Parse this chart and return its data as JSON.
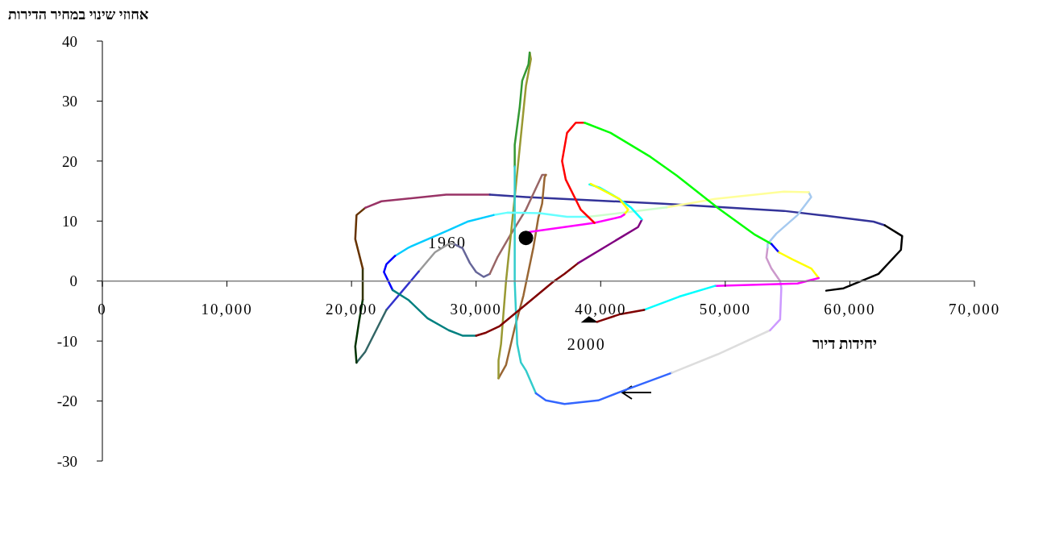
{
  "chart_data": {
    "type": "line",
    "ylabel": "אחוזי שינוי במחיר הדירות",
    "xlabel": "יחידות דיור",
    "xlim": [
      0,
      70000
    ],
    "xticks": [
      {
        "value": 0,
        "label": "0"
      },
      {
        "value": 10000,
        "label": "10,000"
      },
      {
        "value": 20000,
        "label": "20,000"
      },
      {
        "value": 30000,
        "label": "30,000"
      },
      {
        "value": 40000,
        "label": "40,000"
      },
      {
        "value": 50000,
        "label": "50,000"
      },
      {
        "value": 60000,
        "label": "60,000"
      },
      {
        "value": 70000,
        "label": "70,000"
      }
    ],
    "ylim": [
      -30,
      40
    ],
    "yticks": [
      -30,
      -20,
      -10,
      0,
      10,
      20,
      30,
      40
    ],
    "marker": "none",
    "line_style": "solid",
    "annotations": [
      {
        "text": "1960",
        "x": 28200,
        "y": 6.2
      },
      {
        "text": "2000",
        "x": 39700,
        "y": -6.8
      }
    ],
    "series": [
      {
        "type": "line",
        "color": "#666699",
        "x": [
          31100,
          30600,
          30000,
          29500,
          28900,
          28200
        ],
        "values": [
          1.2,
          0.7,
          1.5,
          3.0,
          5.5,
          6.2
        ]
      },
      {
        "type": "line",
        "color": "#999999",
        "x": [
          28200,
          27800,
          26700,
          25400
        ],
        "values": [
          6.2,
          6.2,
          4.8,
          1.6
        ]
      },
      {
        "type": "line",
        "color": "#3333cc",
        "x": [
          25400,
          22800
        ],
        "values": [
          1.6,
          -4.8
        ]
      },
      {
        "type": "line",
        "color": "#336666",
        "x": [
          22800,
          21100,
          20400
        ],
        "values": [
          -4.8,
          -11.8,
          -13.6
        ]
      },
      {
        "type": "line",
        "color": "#003300",
        "x": [
          20400,
          20300,
          20600,
          20900
        ],
        "values": [
          -13.6,
          -10.9,
          -6.8,
          -3.1
        ]
      },
      {
        "type": "line",
        "color": "#333300",
        "x": [
          20900,
          20900
        ],
        "values": [
          -3.1,
          2.1
        ]
      },
      {
        "type": "line",
        "color": "#663300",
        "x": [
          20900,
          20300,
          20400,
          21100
        ],
        "values": [
          2.1,
          7.0,
          11.0,
          12.2
        ]
      },
      {
        "type": "line",
        "color": "#993366",
        "x": [
          21100,
          22400,
          27600,
          31100
        ],
        "values": [
          12.2,
          13.3,
          14.4,
          14.4
        ]
      },
      {
        "type": "line",
        "color": "#333399",
        "x": [
          31100,
          34000,
          45000,
          54700,
          58000,
          61900,
          62800
        ],
        "values": [
          14.4,
          14.0,
          12.9,
          11.7,
          10.9,
          9.9,
          9.3
        ]
      },
      {
        "type": "line",
        "color": "#000000",
        "x": [
          62800,
          64200,
          64100,
          62300,
          59500,
          58100
        ],
        "values": [
          9.3,
          7.5,
          5.2,
          1.2,
          -1.2,
          -1.6
        ]
      },
      {
        "type": "line",
        "color": "#996666",
        "x": [
          35600,
          35300,
          34000,
          32700,
          31700,
          31100
        ],
        "values": [
          17.7,
          17.7,
          11.9,
          7.5,
          3.9,
          1.2
        ]
      },
      {
        "type": "line",
        "color": "#996633",
        "x": [
          31800,
          32400,
          33100,
          33800,
          34600,
          35000,
          35300,
          35500,
          35600
        ],
        "values": [
          -16.2,
          -14.0,
          -7.8,
          -2.4,
          5.6,
          10.6,
          12.9,
          17.3,
          17.7
        ]
      },
      {
        "type": "line",
        "color": "#999933",
        "x": [
          34300,
          34400,
          34000,
          33200,
          32400,
          32000,
          31800,
          31800
        ],
        "values": [
          38.1,
          37.0,
          32.5,
          16.0,
          -0.1,
          -10.5,
          -13.2,
          -16.2
        ]
      },
      {
        "type": "line",
        "color": "#339933",
        "x": [
          33100,
          33100,
          33500,
          33700,
          34200,
          34300
        ],
        "values": [
          19.1,
          22.7,
          29.0,
          33.4,
          36.1,
          38.1
        ]
      },
      {
        "type": "line",
        "color": "#33cccc",
        "x": [
          34800,
          34000,
          33600,
          33300,
          33100,
          33100
        ],
        "values": [
          -18.7,
          -14.9,
          -13.6,
          -10.5,
          -0.1,
          19.1
        ]
      },
      {
        "type": "line",
        "color": "#3366ff",
        "x": [
          45700,
          41800,
          39800,
          37100,
          35600,
          34800
        ],
        "values": [
          -15.3,
          -18.3,
          -19.9,
          -20.5,
          -19.9,
          -18.7
        ]
      },
      {
        "type": "line",
        "color": "#dddddd",
        "x": [
          53600,
          49400,
          45700
        ],
        "values": [
          -8.2,
          -12.2,
          -15.3
        ]
      },
      {
        "type": "line",
        "color": "#cc99ff",
        "x": [
          54400,
          54500,
          54400,
          53600
        ],
        "values": [
          0,
          -1.1,
          -6.4,
          -8.2
        ]
      },
      {
        "type": "line",
        "color": "#cc99cc",
        "x": [
          53400,
          53300,
          53700,
          54400
        ],
        "values": [
          5.6,
          3.9,
          2.1,
          0
        ]
      },
      {
        "type": "line",
        "color": "#a6caf0",
        "x": [
          56700,
          56900,
          55800,
          54100,
          53400,
          53400
        ],
        "values": [
          14.8,
          14.0,
          11.0,
          7.9,
          6.2,
          5.6
        ]
      },
      {
        "type": "line",
        "color": "#ffff99",
        "x": [
          45300,
          49200,
          54700,
          56700
        ],
        "values": [
          12.3,
          13.7,
          14.9,
          14.8
        ]
      },
      {
        "type": "line",
        "color": "#ccffcc",
        "x": [
          39000,
          45300
        ],
        "values": [
          10.7,
          12.3
        ]
      },
      {
        "type": "line",
        "color": "#66ffff",
        "x": [
          31400,
          32500,
          35100,
          37300,
          39000
        ],
        "values": [
          11.0,
          11.4,
          11.3,
          10.7,
          10.7
        ]
      },
      {
        "type": "line",
        "color": "#00ccff",
        "x": [
          23500,
          24600,
          27600,
          29300,
          31400
        ],
        "values": [
          4.2,
          5.6,
          8.3,
          9.9,
          11.0
        ]
      },
      {
        "type": "line",
        "color": "#0000ff",
        "x": [
          23300,
          22600,
          22800,
          23500
        ],
        "values": [
          -1.5,
          1.5,
          2.8,
          4.2
        ]
      },
      {
        "type": "line",
        "color": "#008080",
        "x": [
          30000,
          28900,
          27800,
          26100,
          24600,
          23300
        ],
        "values": [
          -9.1,
          -9.1,
          -8.2,
          -6.2,
          -3.2,
          -1.5
        ]
      },
      {
        "type": "line",
        "color": "#800000",
        "x": [
          38200,
          37100,
          36200,
          34000,
          31900,
          30800,
          30000
        ],
        "values": [
          3.0,
          1.2,
          -0.1,
          -3.9,
          -7.5,
          -8.6,
          -9.1
        ]
      },
      {
        "type": "line",
        "color": "#800080",
        "x": [
          43300,
          43000,
          41800,
          38200
        ],
        "values": [
          10.2,
          9.0,
          7.5,
          3.0
        ]
      },
      {
        "type": "line",
        "color": "#00ffff",
        "x": [
          39100,
          39900,
          41400,
          42400,
          43300
        ],
        "values": [
          16.1,
          15.6,
          13.8,
          12.3,
          10.3
        ]
      },
      {
        "type": "line",
        "color": "#ffff00",
        "x": [
          41900,
          42200,
          41500,
          39200
        ],
        "values": [
          11.1,
          11.9,
          13.7,
          16.2
        ]
      },
      {
        "type": "line",
        "color": "#ff00ff",
        "x": [
          34300,
          39500,
          41600,
          41900
        ],
        "values": [
          8.2,
          9.7,
          10.7,
          11.1
        ]
      },
      {
        "type": "line",
        "color": "#ff0000",
        "x": [
          39500,
          38400,
          37200,
          36900,
          37300,
          38000,
          38700
        ],
        "values": [
          9.7,
          11.9,
          16.9,
          20.0,
          24.7,
          26.4,
          26.4
        ]
      },
      {
        "type": "line",
        "color": "#00ff00",
        "x": [
          38700,
          40800,
          44000,
          46100,
          49400,
          52400,
          53700
        ],
        "values": [
          26.4,
          24.7,
          20.7,
          17.6,
          12.2,
          7.7,
          6.2
        ]
      },
      {
        "type": "line",
        "color": "#0000ff",
        "x": [
          53700,
          54300
        ],
        "values": [
          6.2,
          4.8
        ]
      },
      {
        "type": "line",
        "color": "#ffff00",
        "x": [
          54300,
          55400,
          56900,
          57500
        ],
        "values": [
          4.8,
          3.6,
          2.1,
          0.5
        ]
      },
      {
        "type": "line",
        "color": "#ff00ff",
        "x": [
          57500,
          55800,
          49200
        ],
        "values": [
          0.5,
          -0.4,
          -0.8
        ]
      },
      {
        "type": "line",
        "color": "#00ffff",
        "x": [
          49200,
          46300,
          43500
        ],
        "values": [
          -0.8,
          -2.6,
          -4.8
        ]
      },
      {
        "type": "line",
        "color": "#800000",
        "x": [
          43500,
          41600,
          39700
        ],
        "values": [
          -4.8,
          -5.5,
          -6.8
        ]
      },
      {
        "type": "scatter",
        "color": "#000000",
        "marker": "circle",
        "x": [
          34000
        ],
        "values": [
          7.2
        ]
      }
    ]
  }
}
